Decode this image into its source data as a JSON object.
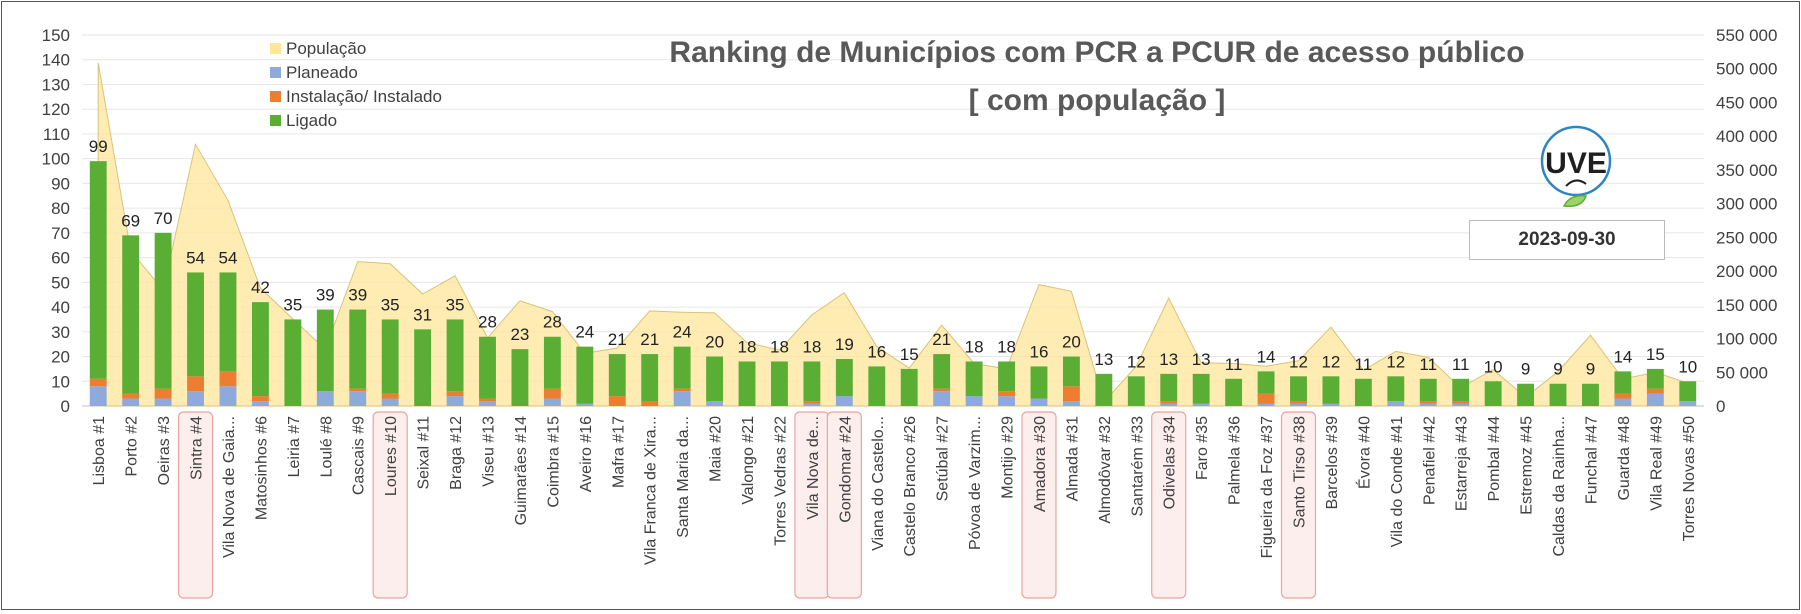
{
  "chart_data": {
    "type": "bar",
    "title": "Ranking de Municípios com PCR a PCUR de acesso público",
    "subtitle": "[ com população ]",
    "date": "2023-09-30",
    "logo_text": "UVE",
    "ylim": [
      0,
      150
    ],
    "y2lim": [
      0,
      550000
    ],
    "y_ticks": [
      "0",
      "10",
      "20",
      "30",
      "40",
      "50",
      "60",
      "70",
      "80",
      "90",
      "100",
      "110",
      "120",
      "130",
      "140",
      "150"
    ],
    "y2_ticks": [
      "0",
      "50 000",
      "100 000",
      "150 000",
      "200 000",
      "250 000",
      "300 000",
      "350 000",
      "400 000",
      "450 000",
      "500 000",
      "550 000"
    ],
    "legend": [
      {
        "name": "População",
        "color": "#FFE699"
      },
      {
        "name": "Planeado",
        "color": "#8EA9DB"
      },
      {
        "name": "Instalação/ Instalado",
        "color": "#ED7D31"
      },
      {
        "name": "Ligado",
        "color": "#5AAE34"
      }
    ],
    "highlighted": [
      "Sintra #4",
      "Loures #10",
      "Vila Nova de...",
      "Gondomar #24",
      "Amadora #30",
      "Odivelas #34",
      "Santo Tirso #38"
    ],
    "categories": [
      "Lisboa #1",
      "Porto #2",
      "Oeiras #3",
      "Sintra #4",
      "Vila Nova de Gaia...",
      "Matosinhos #6",
      "Leiria #7",
      "Loulé #8",
      "Cascais #9",
      "Loures #10",
      "Seixal #11",
      "Braga #12",
      "Viseu #13",
      "Guimarães #14",
      "Coimbra #15",
      "Aveiro #16",
      "Mafra #17",
      "Vila Franca de Xira...",
      "Santa Maria da...",
      "Maia #20",
      "Valongo #21",
      "Torres Vedras #22",
      "Vila Nova de...",
      "Gondomar #24",
      "Viana do Castelo...",
      "Castelo Branco #26",
      "Setúbal #27",
      "Póvoa de Varzim...",
      "Montijo #29",
      "Amadora #30",
      "Almada #31",
      "Almodôvar #32",
      "Santarém #33",
      "Odivelas #34",
      "Faro #35",
      "Palmela #36",
      "Figueira da Foz #37",
      "Santo Tirso #38",
      "Barcelos #39",
      "Évora #40",
      "Vila do Conde #41",
      "Penafiel #42",
      "Estarreja #43",
      "Pombal #44",
      "Estremoz #45",
      "Caldas da Rainha...",
      "Funchal #47",
      "Guarda #48",
      "Vila Real #49",
      "Torres Novas #50"
    ],
    "totals": [
      99,
      69,
      70,
      54,
      54,
      42,
      35,
      39,
      39,
      35,
      31,
      35,
      28,
      23,
      28,
      24,
      21,
      21,
      24,
      20,
      18,
      18,
      18,
      19,
      16,
      15,
      21,
      18,
      18,
      16,
      20,
      13,
      12,
      13,
      13,
      11,
      14,
      12,
      12,
      11,
      12,
      11,
      11,
      10,
      9,
      9,
      9,
      14,
      15,
      10
    ],
    "series": [
      {
        "name": "Planeado",
        "values": [
          8,
          3,
          3,
          6,
          8,
          2,
          0,
          6,
          6,
          3,
          0,
          4,
          2,
          0,
          3,
          1,
          0,
          0,
          6,
          2,
          0,
          0,
          1,
          4,
          0,
          0,
          6,
          4,
          4,
          3,
          2,
          0,
          0,
          1,
          1,
          0,
          1,
          1,
          1,
          0,
          2,
          1,
          1,
          0,
          0,
          0,
          0,
          3,
          5,
          2
        ]
      },
      {
        "name": "Instalação/ Instalado",
        "values": [
          3,
          2,
          4,
          6,
          6,
          2,
          0,
          0,
          1,
          2,
          0,
          2,
          1,
          0,
          4,
          0,
          4,
          2,
          1,
          0,
          0,
          0,
          1,
          0,
          0,
          0,
          1,
          0,
          2,
          0,
          6,
          0,
          0,
          1,
          0,
          0,
          4,
          1,
          0,
          0,
          0,
          1,
          1,
          0,
          0,
          0,
          0,
          2,
          2,
          0
        ]
      },
      {
        "name": "Ligado",
        "values": [
          88,
          64,
          63,
          42,
          40,
          38,
          35,
          33,
          32,
          30,
          31,
          29,
          25,
          23,
          21,
          23,
          17,
          19,
          17,
          18,
          18,
          18,
          16,
          15,
          16,
          15,
          14,
          14,
          12,
          13,
          12,
          13,
          12,
          11,
          12,
          11,
          9,
          10,
          11,
          11,
          10,
          9,
          9,
          10,
          9,
          9,
          9,
          9,
          8,
          8
        ]
      },
      {
        "name": "População",
        "values": [
          509000,
          230000,
          172000,
          388000,
          305000,
          175000,
          129000,
          84000,
          214000,
          211000,
          166000,
          193000,
          101000,
          156000,
          140000,
          78000,
          86000,
          141000,
          139000,
          138000,
          94000,
          83000,
          135000,
          168000,
          88000,
          56000,
          120000,
          63000,
          55000,
          180000,
          170000,
          6000,
          59000,
          160000,
          64000,
          63000,
          59000,
          67000,
          117000,
          53000,
          81000,
          72000,
          27000,
          54000,
          13000,
          51000,
          105000,
          40000,
          50000,
          34000
        ]
      }
    ]
  }
}
